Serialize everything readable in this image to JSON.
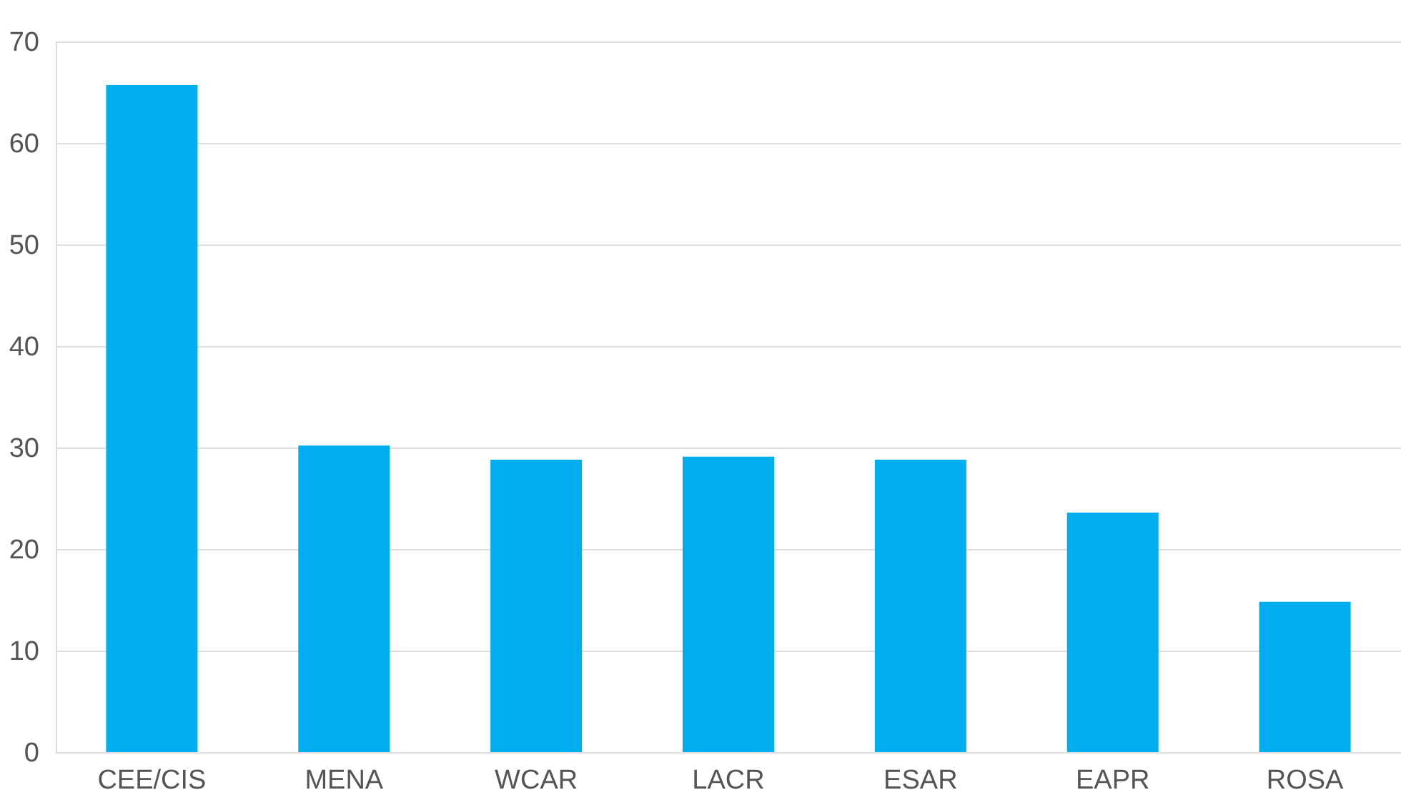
{
  "chart_data": {
    "type": "bar",
    "categories": [
      "CEE/CIS",
      "MENA",
      "WCAR",
      "LACR",
      "ESAR",
      "EAPR",
      "ROSA"
    ],
    "values": [
      65.7,
      30.2,
      28.8,
      29.1,
      28.8,
      23.6,
      14.8
    ],
    "color": "#00aeef",
    "ylim": [
      0,
      70
    ],
    "yticks": [
      0,
      10,
      20,
      30,
      40,
      50,
      60,
      70
    ],
    "grid": "y"
  }
}
